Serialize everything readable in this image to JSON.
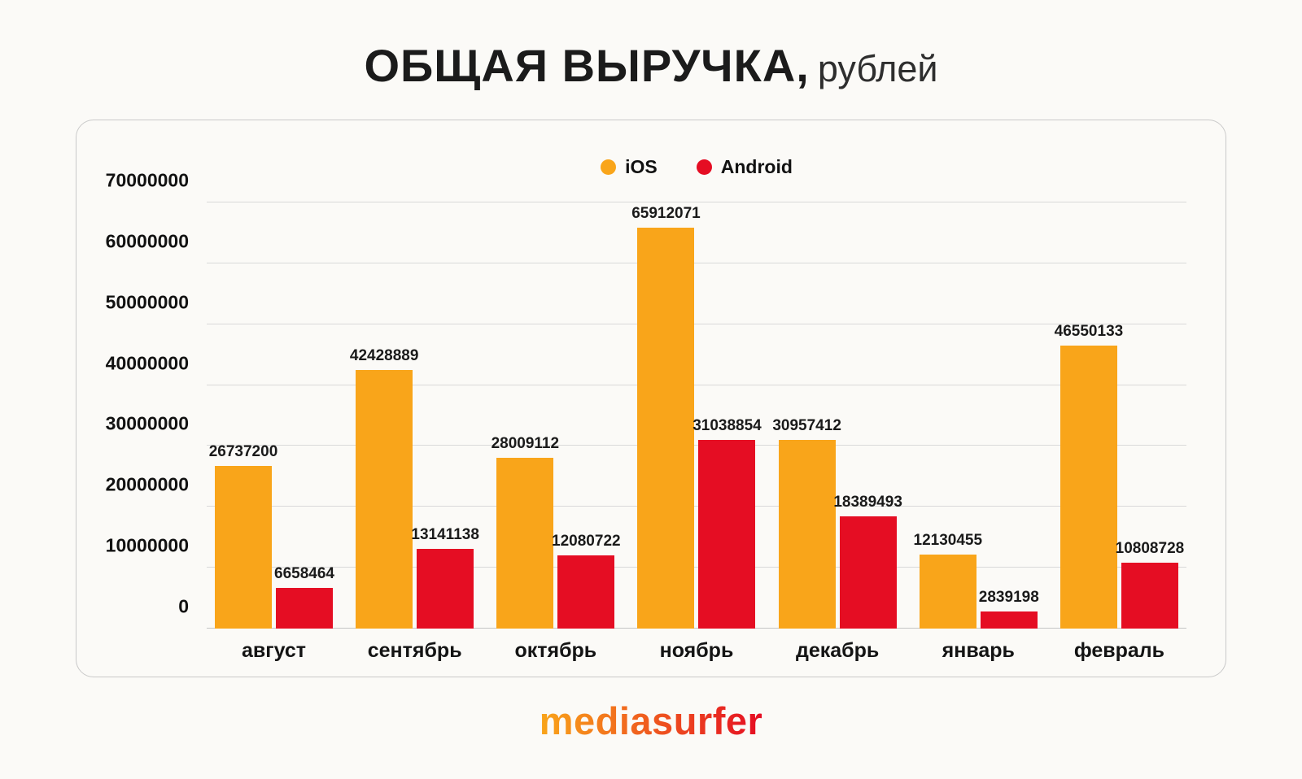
{
  "page": {
    "title_main": "ОБЩАЯ ВЫРУЧКА,",
    "title_sub": "рублей",
    "brand": "mediasurfer"
  },
  "colors": {
    "ios": "#F9A51A",
    "android": "#E50D23",
    "brand_gradient_start": "#F9A51A",
    "brand_gradient_end": "#E50D23",
    "gridline": "#d9d9d9",
    "text": "#161616",
    "background": "#fbfaf7"
  },
  "chart_data": {
    "type": "bar",
    "title": "ОБЩАЯ ВЫРУЧКА, рублей",
    "categories": [
      "август",
      "сентябрь",
      "октябрь",
      "ноябрь",
      "декабрь",
      "январь",
      "февраль"
    ],
    "series": [
      {
        "name": "iOS",
        "color": "#F9A51A",
        "values": [
          26737200,
          42428889,
          28009112,
          65912071,
          30957412,
          12130455,
          46550133
        ]
      },
      {
        "name": "Android",
        "color": "#E50D23",
        "values": [
          6658464,
          13141138,
          12080722,
          31038854,
          18389493,
          2839198,
          10808728
        ]
      }
    ],
    "xlabel": "",
    "ylabel": "",
    "ylim": [
      0,
      70000000
    ],
    "ytick_step": 10000000,
    "grid": true,
    "legend_position": "top-center",
    "value_labels": true
  }
}
